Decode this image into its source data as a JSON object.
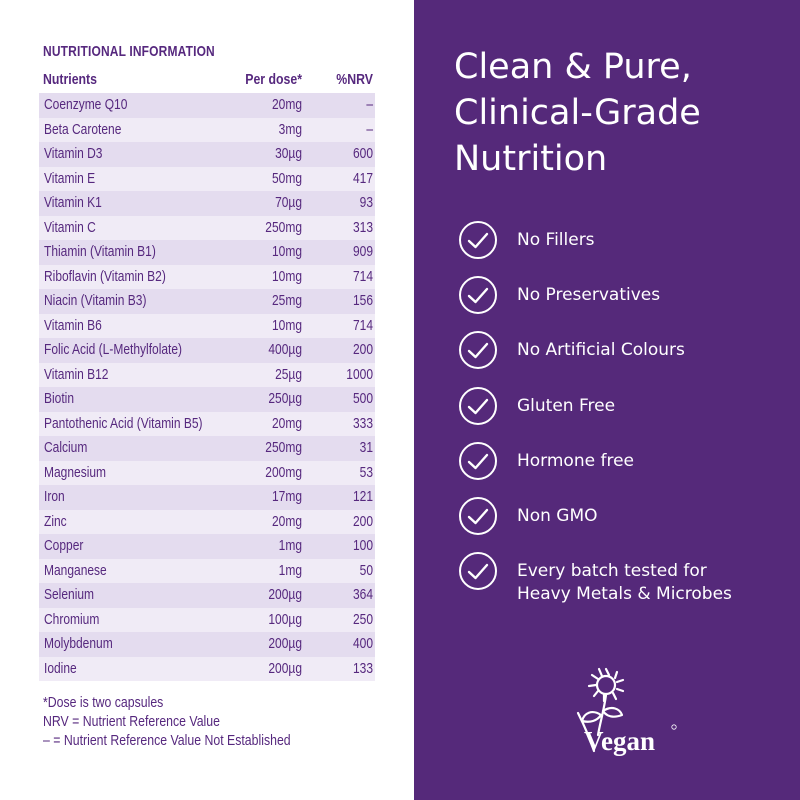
{
  "nutrition": {
    "title": "NUTRITIONAL INFORMATION",
    "headers": {
      "nutrients": "Nutrients",
      "per_dose": "Per dose*",
      "nrv": "%NRV"
    },
    "rows": [
      {
        "name": "Coenzyme Q10",
        "dose": "20mg",
        "nrv": "–"
      },
      {
        "name": "Beta Carotene",
        "dose": "3mg",
        "nrv": "–"
      },
      {
        "name": "Vitamin D3",
        "dose": "30µg",
        "nrv": "600"
      },
      {
        "name": "Vitamin E",
        "dose": "50mg",
        "nrv": "417"
      },
      {
        "name": "Vitamin K1",
        "dose": "70µg",
        "nrv": "93"
      },
      {
        "name": "Vitamin C",
        "dose": "250mg",
        "nrv": "313"
      },
      {
        "name": "Thiamin (Vitamin B1)",
        "dose": "10mg",
        "nrv": "909"
      },
      {
        "name": "Riboflavin (Vitamin B2)",
        "dose": "10mg",
        "nrv": "714"
      },
      {
        "name": "Niacin (Vitamin B3)",
        "dose": "25mg",
        "nrv": "156"
      },
      {
        "name": "Vitamin B6",
        "dose": "10mg",
        "nrv": "714"
      },
      {
        "name": "Folic Acid (L-Methylfolate)",
        "dose": "400µg",
        "nrv": "200"
      },
      {
        "name": "Vitamin B12",
        "dose": "25µg",
        "nrv": "1000"
      },
      {
        "name": "Biotin",
        "dose": "250µg",
        "nrv": "500"
      },
      {
        "name": "Pantothenic Acid (Vitamin B5)",
        "dose": "20mg",
        "nrv": "333"
      },
      {
        "name": "Calcium",
        "dose": "250mg",
        "nrv": "31"
      },
      {
        "name": "Magnesium",
        "dose": "200mg",
        "nrv": "53"
      },
      {
        "name": "Iron",
        "dose": "17mg",
        "nrv": "121"
      },
      {
        "name": "Zinc",
        "dose": "20mg",
        "nrv": "200"
      },
      {
        "name": "Copper",
        "dose": "1mg",
        "nrv": "100"
      },
      {
        "name": "Manganese",
        "dose": "1mg",
        "nrv": "50"
      },
      {
        "name": "Selenium",
        "dose": "200µg",
        "nrv": "364"
      },
      {
        "name": "Chromium",
        "dose": "100µg",
        "nrv": "250"
      },
      {
        "name": "Molybdenum",
        "dose": "200µg",
        "nrv": "400"
      },
      {
        "name": "Iodine",
        "dose": "200µg",
        "nrv": "133"
      }
    ],
    "notes": [
      "*Dose is two capsules",
      "NRV = Nutrient Reference Value",
      "– = Nutrient Reference Value Not Established"
    ]
  },
  "headline": [
    "Clean & Pure,",
    "Clinical-Grade",
    "Nutrition"
  ],
  "features": [
    {
      "lines": [
        "No Fillers"
      ],
      "icon": "check-circle-icon"
    },
    {
      "lines": [
        "No Preservatives"
      ],
      "icon": "check-circle-icon"
    },
    {
      "lines": [
        "No Artificial Colours"
      ],
      "icon": "check-circle-icon"
    },
    {
      "lines": [
        "Gluten Free"
      ],
      "icon": "check-circle-icon"
    },
    {
      "lines": [
        "Hormone free"
      ],
      "icon": "check-circle-icon"
    },
    {
      "lines": [
        "Non GMO"
      ],
      "icon": "check-circle-icon"
    },
    {
      "lines": [
        "Every batch tested for",
        "Heavy Metals & Microbes"
      ],
      "icon": "check-circle-icon"
    }
  ],
  "vegan_logo": {
    "text": "Vegan",
    "icon": "vegan-sunflower-logo"
  },
  "colors": {
    "brand_purple": "#55297a",
    "text_purple": "#56287e",
    "row_dark": "#e4dcef",
    "row_light": "#f0ebf6"
  }
}
